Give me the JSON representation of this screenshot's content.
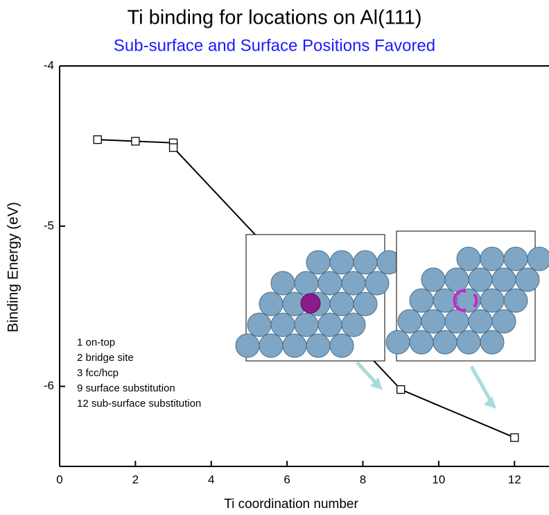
{
  "chart_data": {
    "type": "line",
    "title": "Ti binding for locations on Al(111)",
    "subtitle": "Sub-surface and Surface Positions Favored",
    "x_label": "Ti coordination number",
    "y_label": "Binding Energy (eV)",
    "x": [
      1,
      2,
      3,
      3,
      9,
      12
    ],
    "values": [
      -4.46,
      -4.47,
      -4.48,
      -4.51,
      -6.02,
      -6.32
    ],
    "color": "#000000",
    "xlim": [
      0,
      12.8
    ],
    "xticks": [
      0,
      2,
      4,
      6,
      8,
      10,
      12
    ],
    "ylim": [
      -6.5,
      -4
    ],
    "yticks": [
      -4,
      -5,
      -6
    ],
    "annotations": [
      "1 on-top",
      "2 bridge site",
      "3 fcc/hcp",
      "9 surface substitution",
      "12 sub-surface substitution"
    ]
  }
}
